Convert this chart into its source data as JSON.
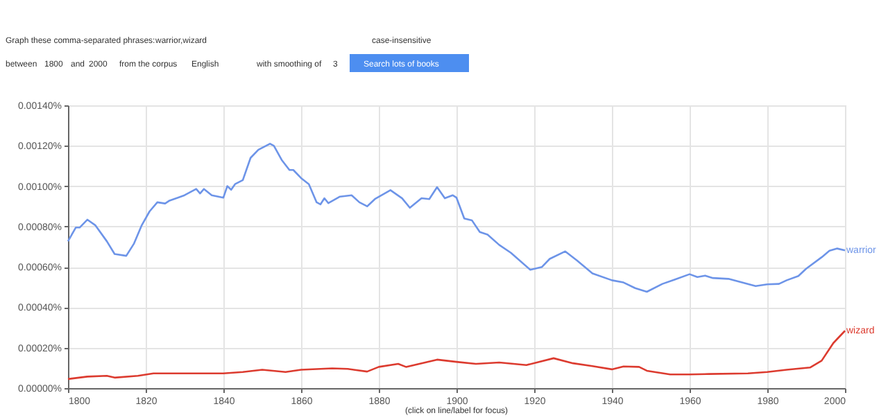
{
  "chart_data": {
    "type": "line",
    "xlim": [
      1800,
      2000
    ],
    "xticks": [
      1800,
      1820,
      1840,
      1860,
      1880,
      1900,
      1920,
      1940,
      1960,
      1980,
      2000
    ],
    "ylim": [
      0,
      0.0014
    ],
    "yticks": [
      {
        "value": 0,
        "label": "0.00000%"
      },
      {
        "value": 0.0002,
        "label": "0.00020%"
      },
      {
        "value": 0.0004,
        "label": "0.00040%"
      },
      {
        "value": 0.0006,
        "label": "0.00060%"
      },
      {
        "value": 0.0008,
        "label": "0.00080%"
      },
      {
        "value": 0.001,
        "label": "0.00100%"
      },
      {
        "value": 0.0012,
        "label": "0.00120%"
      },
      {
        "value": 0.0014,
        "label": "0.00140%"
      }
    ],
    "grid": true,
    "legend": false,
    "marker": "none",
    "line_style": "solid",
    "series": [
      {
        "name": "warrior",
        "color": "#6d94e8",
        "x": [
          1800,
          1802,
          1803,
          1805,
          1807,
          1810,
          1812,
          1815,
          1817,
          1819,
          1821,
          1823,
          1825,
          1826,
          1830,
          1833,
          1834,
          1835,
          1837,
          1840,
          1841,
          1842,
          1843,
          1845,
          1847,
          1849,
          1852,
          1853,
          1855,
          1857,
          1858,
          1860,
          1862,
          1864,
          1865,
          1866,
          1867,
          1870,
          1873,
          1875,
          1877,
          1879,
          1883,
          1886,
          1888,
          1891,
          1893,
          1895,
          1897,
          1899,
          1900,
          1902,
          1904,
          1906,
          1908,
          1911,
          1914,
          1919,
          1922,
          1924,
          1928,
          1931,
          1935,
          1940,
          1943,
          1946,
          1949,
          1953,
          1956,
          1960,
          1962,
          1964,
          1966,
          1970,
          1977,
          1980,
          1983,
          1985,
          1988,
          1990,
          1994,
          1996,
          1998,
          2000
        ],
        "values": [
          0.000727,
          0.000795,
          0.000795,
          0.000834,
          0.000807,
          0.000727,
          0.000664,
          0.000655,
          0.000716,
          0.000807,
          0.000875,
          0.00092,
          0.000914,
          0.000927,
          0.000955,
          0.000986,
          0.000964,
          0.000986,
          0.000955,
          0.000943,
          0.001,
          0.000982,
          0.00101,
          0.00103,
          0.00114,
          0.00118,
          0.00121,
          0.0012,
          0.00113,
          0.00108,
          0.00108,
          0.00104,
          0.00101,
          0.00092,
          0.00091,
          0.00094,
          0.000916,
          0.000948,
          0.000955,
          0.00092,
          0.0009,
          0.000936,
          0.00098,
          0.00094,
          0.000893,
          0.00094,
          0.000936,
          0.000995,
          0.00094,
          0.000955,
          0.000943,
          0.00084,
          0.00083,
          0.000773,
          0.00076,
          0.000709,
          0.00067,
          0.000586,
          0.0006,
          0.00064,
          0.000677,
          0.000632,
          0.000568,
          0.000534,
          0.000523,
          0.000495,
          0.000477,
          0.000516,
          0.000536,
          0.000564,
          0.00055,
          0.000557,
          0.000545,
          0.000541,
          0.000505,
          0.000514,
          0.000516,
          0.000534,
          0.000555,
          0.000591,
          0.000648,
          0.00068,
          0.000691,
          0.000682
        ]
      },
      {
        "name": "wizard",
        "color": "#dc3b2f",
        "x": [
          1800,
          1805,
          1810,
          1812,
          1818,
          1822,
          1830,
          1840,
          1845,
          1850,
          1856,
          1860,
          1868,
          1872,
          1877,
          1880,
          1885,
          1887,
          1895,
          1900,
          1905,
          1911,
          1918,
          1925,
          1930,
          1935,
          1940,
          1943,
          1947,
          1949,
          1955,
          1960,
          1965,
          1975,
          1980,
          1985,
          1991,
          1994,
          1997,
          2000
        ],
        "values": [
          4.5e-05,
          5.7e-05,
          6.1e-05,
          5.2e-05,
          6.1e-05,
          7.3e-05,
          7.3e-05,
          7.3e-05,
          8e-05,
          9.1e-05,
          8e-05,
          9.1e-05,
          9.8e-05,
          9.5e-05,
          8.2e-05,
          0.000105,
          0.00012,
          0.000105,
          0.000141,
          0.00013,
          0.00012,
          0.000127,
          0.000114,
          0.000148,
          0.000123,
          0.000109,
          9.3e-05,
          0.000107,
          0.000105,
          8.6e-05,
          6.8e-05,
          6.8e-05,
          7e-05,
          7.3e-05,
          8e-05,
          9.1e-05,
          0.000102,
          0.000136,
          0.000223,
          0.000284
        ]
      }
    ],
    "annotations": [
      "Graph these comma-separated phrases:",
      "warrior,wizard",
      "case-insensitive",
      "between",
      "1800",
      "and",
      "2000",
      "from the corpus",
      "English",
      "with smoothing of",
      "3",
      "Search lots of books",
      "(click on line/label for focus)"
    ]
  }
}
